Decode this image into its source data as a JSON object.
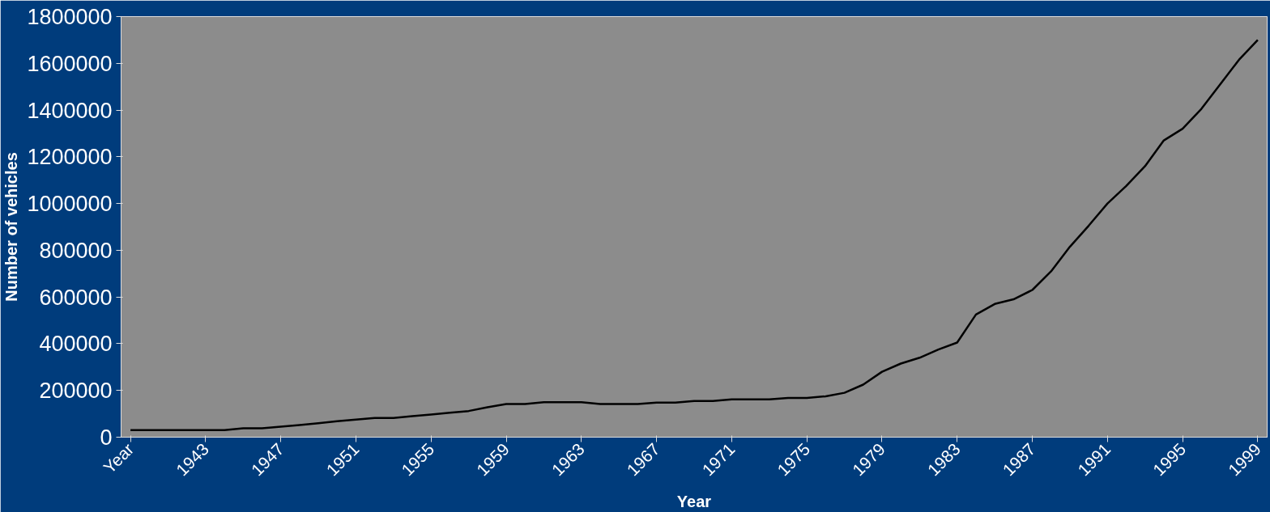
{
  "chart_data": {
    "type": "line",
    "xlabel": "Year",
    "ylabel": "Number of vehicles",
    "categories": [
      "Year",
      null,
      null,
      null,
      "1943",
      null,
      null,
      null,
      "1947",
      null,
      null,
      null,
      "1951",
      null,
      null,
      null,
      "1955",
      null,
      null,
      null,
      "1959",
      null,
      null,
      null,
      "1963",
      null,
      null,
      null,
      "1967",
      null,
      null,
      null,
      "1971",
      null,
      null,
      null,
      "1975",
      null,
      null,
      null,
      "1979",
      null,
      null,
      null,
      "1983",
      null,
      null,
      null,
      "1987",
      null,
      null,
      null,
      "1991",
      null,
      null,
      null,
      "1995",
      null,
      null,
      null,
      "1999"
    ],
    "series": [
      {
        "color": "#000000",
        "values": [
          30000,
          30000,
          30000,
          30000,
          30000,
          30000,
          38000,
          38000,
          45000,
          52000,
          60000,
          68000,
          75000,
          82000,
          82000,
          90000,
          97000,
          105000,
          112000,
          128000,
          142000,
          142000,
          150000,
          150000,
          150000,
          142000,
          142000,
          142000,
          148000,
          148000,
          155000,
          155000,
          162000,
          162000,
          162000,
          168000,
          168000,
          175000,
          190000,
          225000,
          280000,
          315000,
          340000,
          375000,
          405000,
          525000,
          570000,
          590000,
          630000,
          710000,
          815000,
          905000,
          1000000,
          1075000,
          1160000,
          1270000,
          1320000,
          1405000,
          1510000,
          1615000,
          1700000
        ]
      }
    ],
    "ylim": [
      0,
      1800000
    ],
    "yticks": [
      0,
      200000,
      400000,
      600000,
      800000,
      1000000,
      1200000,
      1400000,
      1600000,
      1800000
    ],
    "grid": false,
    "marker": "none",
    "line_style": "solid"
  }
}
